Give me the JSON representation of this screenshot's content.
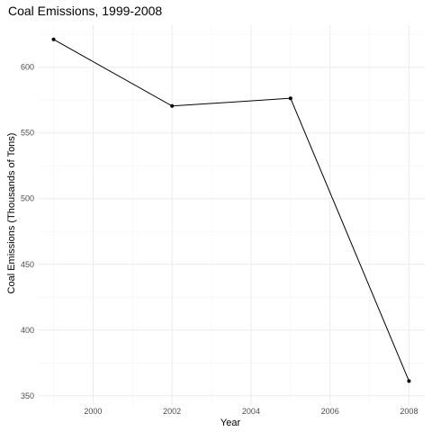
{
  "chart_data": {
    "type": "line",
    "title": "Coal Emissions, 1999-2008",
    "xlabel": "Year",
    "ylabel": "Coal Emissions (Thousands of Tons)",
    "x": [
      1999,
      2002,
      2005,
      2008
    ],
    "series": [
      {
        "values": [
          621.2,
          570.5,
          576.4,
          361.2
        ]
      }
    ],
    "xlim": [
      1998.6,
      2008.4
    ],
    "ylim": [
      343,
      632
    ],
    "xticks": [
      2000,
      2002,
      2004,
      2006,
      2008
    ],
    "xtick_labels": [
      "2000",
      "2002",
      "2004",
      "2006",
      "2008"
    ],
    "yticks": [
      350,
      400,
      450,
      500,
      550,
      600
    ],
    "ytick_labels": [
      "350",
      "400",
      "450",
      "500",
      "550",
      "600"
    ],
    "grid": true,
    "colors": {
      "line": "#000000",
      "grid": "#ebebeb",
      "background": "#ffffff"
    }
  }
}
